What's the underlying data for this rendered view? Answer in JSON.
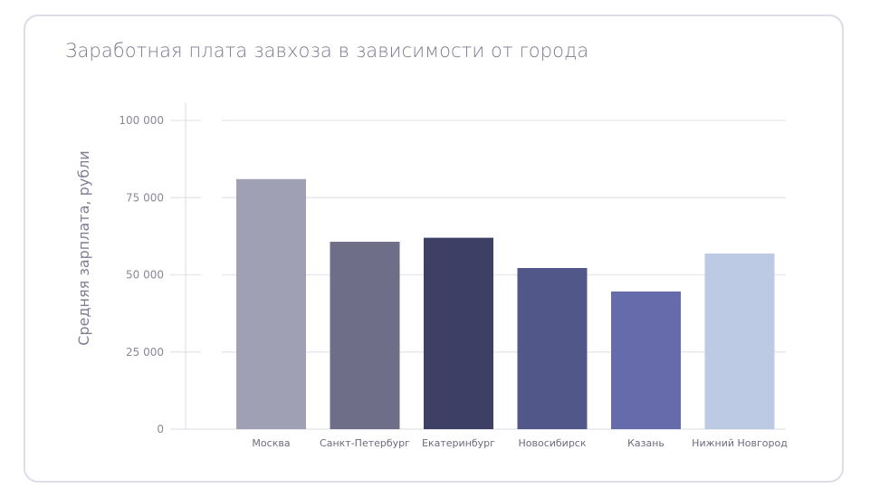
{
  "chart_data": {
    "type": "bar",
    "title": "Заработная плата завхоза в зависимости от города",
    "xlabel": "",
    "ylabel": "Средняя зарплата, рубли",
    "categories": [
      "Москва",
      "Санкт-Петербург",
      "Екатеринбург",
      "Новосибирск",
      "Казань",
      "Нижний Новгород"
    ],
    "values": [
      81000,
      60700,
      62000,
      52200,
      44600,
      56900
    ],
    "colors": [
      "#a0a0b4",
      "#6e6e89",
      "#3d3f64",
      "#525789",
      "#666cab",
      "#bdcae4"
    ],
    "ylim": [
      0,
      100000
    ],
    "yticks": [
      0,
      25000,
      50000,
      75000,
      100000
    ],
    "ytick_labels": [
      "0",
      "25 000",
      "50 000",
      "75 000",
      "100 000"
    ],
    "grid": true
  }
}
